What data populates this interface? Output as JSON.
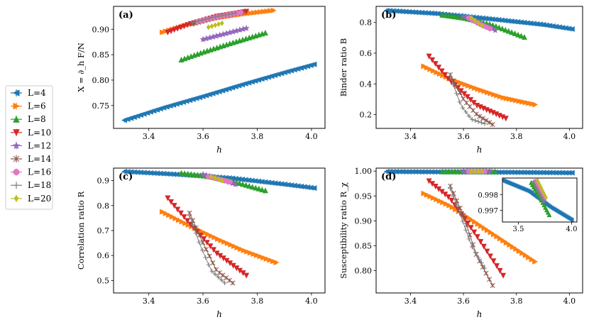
{
  "colors": {
    "L=4": "#1f77b4",
    "L=6": "#ff7f0e",
    "L=8": "#2ca02c",
    "L=10": "#d62728",
    "L=12": "#9467bd",
    "L=14": "#8c564b",
    "L=16": "#e377c2",
    "L=18": "#7f7f7f",
    "L=20": "#bcbd22"
  },
  "legend": {
    "entries": [
      {
        "label": "L=4",
        "marker": "tri-left"
      },
      {
        "label": "L=6",
        "marker": "tri-right"
      },
      {
        "label": "L=8",
        "marker": "tri-up"
      },
      {
        "label": "L=10",
        "marker": "tri-down"
      },
      {
        "label": "L=12",
        "marker": "star"
      },
      {
        "label": "L=14",
        "marker": "x"
      },
      {
        "label": "L=16",
        "marker": "circle"
      },
      {
        "label": "L=18",
        "marker": "plus"
      },
      {
        "label": "L=20",
        "marker": "diamond"
      }
    ]
  },
  "chart_data": [
    {
      "panel": "(a)",
      "type": "line",
      "xlabel": "h",
      "ylabel": "X = ∂_h F/N",
      "xlim": [
        3.27,
        4.05
      ],
      "ylim": [
        0.705,
        0.945
      ],
      "xticks": [
        3.4,
        3.6,
        3.8,
        4.0
      ],
      "xtick_labels": [
        "3.4",
        "3.6",
        "3.8",
        "4.0"
      ],
      "yticks": [
        0.75,
        0.8,
        0.85,
        0.9
      ],
      "ytick_labels": [
        "0.75",
        "0.80",
        "0.85",
        "0.90"
      ],
      "series": [
        {
          "name": "L=4",
          "x": [
            3.31,
            3.45,
            3.6,
            3.75,
            3.9,
            4.01
          ],
          "y": [
            0.721,
            0.745,
            0.768,
            0.792,
            0.815,
            0.831
          ]
        },
        {
          "name": "L=6",
          "x": [
            3.45,
            3.55,
            3.65,
            3.75,
            3.86
          ],
          "y": [
            0.894,
            0.91,
            0.922,
            0.93,
            0.937
          ]
        },
        {
          "name": "L=8",
          "x": [
            3.52,
            3.6,
            3.7,
            3.83
          ],
          "y": [
            0.84,
            0.855,
            0.872,
            0.893
          ]
        },
        {
          "name": "L=10",
          "x": [
            3.47,
            3.55,
            3.65,
            3.76
          ],
          "y": [
            0.894,
            0.91,
            0.925,
            0.935
          ]
        },
        {
          "name": "L=12",
          "x": [
            3.6,
            3.68,
            3.76
          ],
          "y": [
            0.88,
            0.891,
            0.902
          ]
        },
        {
          "name": "L=14",
          "x": [
            3.56,
            3.65,
            3.75
          ],
          "y": [
            0.91,
            0.923,
            0.934
          ]
        },
        {
          "name": "L=16",
          "x": [
            3.58,
            3.66,
            3.74
          ],
          "y": [
            0.915,
            0.925,
            0.933
          ]
        },
        {
          "name": "L=18",
          "x": [
            3.56,
            3.64,
            3.72
          ],
          "y": [
            0.913,
            0.924,
            0.932
          ]
        },
        {
          "name": "L=20",
          "x": [
            3.62,
            3.67
          ],
          "y": [
            0.904,
            0.912
          ]
        }
      ]
    },
    {
      "panel": "(b)",
      "type": "line",
      "xlabel": "h",
      "ylabel": "Binder ratio B",
      "xlim": [
        3.27,
        4.05
      ],
      "ylim": [
        0.11,
        0.905
      ],
      "xticks": [
        3.4,
        3.6,
        3.8,
        4.0
      ],
      "xtick_labels": [
        "3.4",
        "3.6",
        "3.8",
        "4.0"
      ],
      "yticks": [
        0.2,
        0.4,
        0.6,
        0.8
      ],
      "ytick_labels": [
        "0.2",
        "0.4",
        "0.6",
        "0.8"
      ],
      "series": [
        {
          "name": "L=4",
          "x": [
            3.31,
            3.5,
            3.7,
            3.9,
            4.01
          ],
          "y": [
            0.878,
            0.858,
            0.823,
            0.786,
            0.757
          ]
        },
        {
          "name": "L=6",
          "x": [
            3.45,
            3.55,
            3.65,
            3.75,
            3.87
          ],
          "y": [
            0.515,
            0.432,
            0.368,
            0.31,
            0.265
          ]
        },
        {
          "name": "L=8",
          "x": [
            3.52,
            3.6,
            3.7,
            3.83
          ],
          "y": [
            0.849,
            0.83,
            0.79,
            0.705
          ]
        },
        {
          "name": "L=10",
          "x": [
            3.47,
            3.55,
            3.65,
            3.76
          ],
          "y": [
            0.58,
            0.42,
            0.26,
            0.175
          ]
        },
        {
          "name": "L=12",
          "x": [
            3.6,
            3.65,
            3.72
          ],
          "y": [
            0.84,
            0.81,
            0.75
          ]
        },
        {
          "name": "L=14",
          "x": [
            3.55,
            3.6,
            3.65,
            3.71
          ],
          "y": [
            0.46,
            0.3,
            0.2,
            0.135
          ]
        },
        {
          "name": "L=16",
          "x": [
            3.62,
            3.66,
            3.7
          ],
          "y": [
            0.83,
            0.79,
            0.76
          ]
        },
        {
          "name": "L=18",
          "x": [
            3.55,
            3.59,
            3.63,
            3.68
          ],
          "y": [
            0.45,
            0.26,
            0.17,
            0.14
          ]
        },
        {
          "name": "L=20",
          "x": [
            3.63,
            3.67
          ],
          "y": [
            0.83,
            0.78
          ]
        }
      ]
    },
    {
      "panel": "(c)",
      "type": "line",
      "xlabel": "h",
      "ylabel": "Correlation ratio R",
      "xlim": [
        3.27,
        4.05
      ],
      "ylim": [
        0.45,
        0.95
      ],
      "xticks": [
        3.4,
        3.6,
        3.8,
        4.0
      ],
      "xtick_labels": [
        "3.4",
        "3.6",
        "3.8",
        "4.0"
      ],
      "yticks": [
        0.5,
        0.6,
        0.7,
        0.8,
        0.9
      ],
      "ytick_labels": [
        "0.5",
        "0.6",
        "0.7",
        "0.8",
        "0.9"
      ],
      "series": [
        {
          "name": "L=4",
          "x": [
            3.31,
            3.5,
            3.7,
            3.9,
            4.01
          ],
          "y": [
            0.936,
            0.925,
            0.91,
            0.885,
            0.87
          ]
        },
        {
          "name": "L=6",
          "x": [
            3.45,
            3.55,
            3.65,
            3.75,
            3.87
          ],
          "y": [
            0.775,
            0.72,
            0.668,
            0.62,
            0.572
          ]
        },
        {
          "name": "L=8",
          "x": [
            3.52,
            3.6,
            3.7,
            3.83
          ],
          "y": [
            0.93,
            0.92,
            0.9,
            0.86
          ]
        },
        {
          "name": "L=10",
          "x": [
            3.47,
            3.55,
            3.65,
            3.76
          ],
          "y": [
            0.83,
            0.73,
            0.61,
            0.52
          ]
        },
        {
          "name": "L=12",
          "x": [
            3.6,
            3.65,
            3.72
          ],
          "y": [
            0.925,
            0.91,
            0.885
          ]
        },
        {
          "name": "L=14",
          "x": [
            3.55,
            3.6,
            3.65,
            3.71
          ],
          "y": [
            0.77,
            0.65,
            0.54,
            0.49
          ]
        },
        {
          "name": "L=16",
          "x": [
            3.62,
            3.66,
            3.7
          ],
          "y": [
            0.915,
            0.905,
            0.895
          ]
        },
        {
          "name": "L=18",
          "x": [
            3.55,
            3.59,
            3.63,
            3.68
          ],
          "y": [
            0.76,
            0.64,
            0.54,
            0.49
          ]
        },
        {
          "name": "L=20",
          "x": [
            3.63,
            3.67
          ],
          "y": [
            0.915,
            0.9
          ]
        }
      ]
    },
    {
      "panel": "(d)",
      "type": "line",
      "xlabel": "h",
      "ylabel": "Susceptibility ratio R_χ",
      "xlim": [
        3.27,
        4.05
      ],
      "ylim": [
        0.755,
        1.006
      ],
      "xticks": [
        3.4,
        3.6,
        3.8,
        4.0
      ],
      "xtick_labels": [
        "3.4",
        "3.6",
        "3.8",
        "4.0"
      ],
      "yticks": [
        0.8,
        0.85,
        0.9,
        0.95,
        1.0
      ],
      "ytick_labels": [
        "0.80",
        "0.85",
        "0.90",
        "0.95",
        "1.00"
      ],
      "series": [
        {
          "name": "L=4",
          "x": [
            3.31,
            3.6,
            3.8,
            4.01
          ],
          "y": [
            0.999,
            0.998,
            0.9975,
            0.9965
          ]
        },
        {
          "name": "L=6",
          "x": [
            3.45,
            3.55,
            3.65,
            3.75,
            3.87
          ],
          "y": [
            0.955,
            0.93,
            0.895,
            0.86,
            0.818
          ]
        },
        {
          "name": "L=8",
          "x": [
            3.52,
            3.62,
            3.72
          ],
          "y": [
            0.999,
            0.999,
            0.999
          ]
        },
        {
          "name": "L=10",
          "x": [
            3.47,
            3.55,
            3.65,
            3.75
          ],
          "y": [
            0.98,
            0.945,
            0.87,
            0.79
          ]
        },
        {
          "name": "L=12",
          "x": [
            3.6,
            3.7
          ],
          "y": [
            0.999,
            0.999
          ]
        },
        {
          "name": "L=14",
          "x": [
            3.55,
            3.6,
            3.65,
            3.71
          ],
          "y": [
            0.97,
            0.91,
            0.83,
            0.77
          ]
        },
        {
          "name": "L=16",
          "x": [
            3.62,
            3.68
          ],
          "y": [
            0.999,
            0.999
          ]
        },
        {
          "name": "L=18",
          "x": [
            3.55,
            3.59,
            3.63,
            3.68
          ],
          "y": [
            0.965,
            0.91,
            0.85,
            0.805
          ]
        },
        {
          "name": "L=20",
          "x": [
            3.63,
            3.67
          ],
          "y": [
            0.999,
            0.999
          ]
        }
      ],
      "inset": {
        "xlim": [
          3.35,
          4.05
        ],
        "ylim": [
          0.99625,
          0.99905
        ],
        "xticks": [
          3.5,
          4.0
        ],
        "xtick_labels": [
          "3.5",
          "4.0"
        ],
        "yticks": [
          0.997,
          0.998
        ],
        "ytick_labels": [
          "0.997",
          "0.998"
        ],
        "series": [
          {
            "name": "L=4",
            "x": [
              3.35,
              3.6,
              3.8,
              4.0
            ],
            "y": [
              0.9989,
              0.9982,
              0.9972,
              0.99638
            ]
          },
          {
            "name": "L=8",
            "x": [
              3.62,
              3.72,
              3.79
            ],
            "y": [
              0.99875,
              0.9976,
              0.9967
            ]
          },
          {
            "name": "L=12",
            "x": [
              3.65,
              3.74
            ],
            "y": [
              0.9988,
              0.9976
            ]
          },
          {
            "name": "L=16",
            "x": [
              3.66,
              3.75
            ],
            "y": [
              0.99885,
              0.9978
            ]
          },
          {
            "name": "L=18",
            "x": [
              3.64,
              3.73
            ],
            "y": [
              0.9988,
              0.9977
            ]
          },
          {
            "name": "L=20",
            "x": [
              3.68,
              3.76
            ],
            "y": [
              0.9989,
              0.9978
            ]
          }
        ]
      }
    }
  ]
}
